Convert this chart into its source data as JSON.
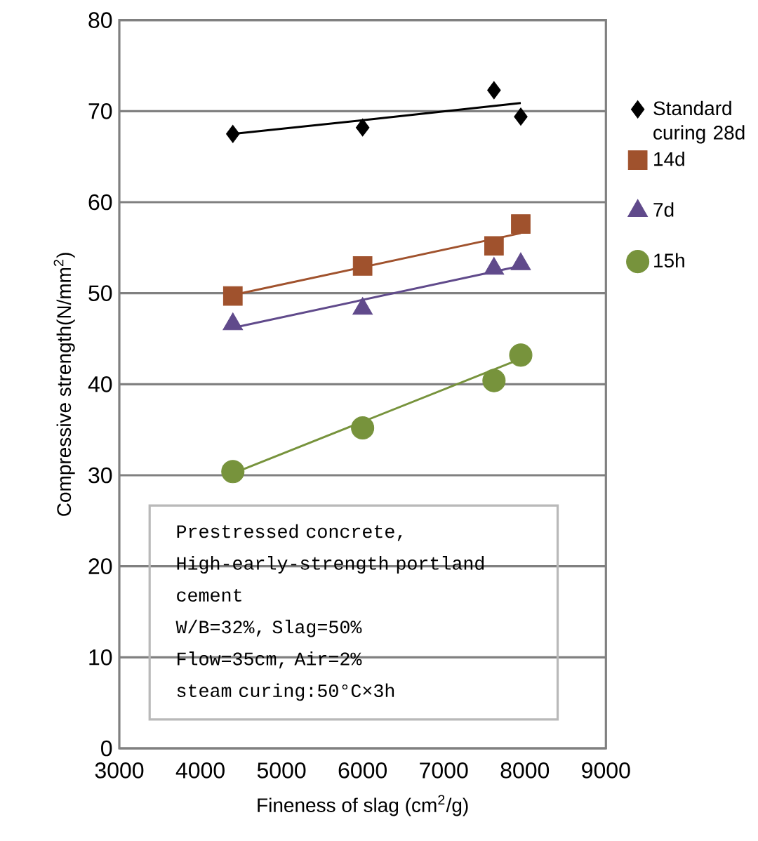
{
  "chart_data": {
    "type": "scatter",
    "xlabel": "Fineness of slag (cm$^{2}$/g)",
    "ylabel": "Compressive strength(N/mm$^{2}$)",
    "xlim": [
      3000,
      9000
    ],
    "xticks": [
      3000,
      4000,
      5000,
      6000,
      7000,
      8000,
      9000
    ],
    "ylim": [
      0,
      80
    ],
    "yticks": [
      0,
      10,
      20,
      30,
      40,
      50,
      60,
      70,
      80
    ],
    "grid": "y",
    "legend": "right",
    "series": [
      {
        "name": "Standard curing 28d",
        "marker": "diamond",
        "color": "#000000",
        "x": [
          4400,
          6000,
          7620,
          7950
        ],
        "values": [
          67.5,
          68.2,
          72.3,
          69.4
        ]
      },
      {
        "name": "14d",
        "marker": "square",
        "color": "#a0522d",
        "x": [
          4400,
          6000,
          7620,
          7950
        ],
        "values": [
          49.7,
          53.0,
          55.2,
          57.6
        ]
      },
      {
        "name": "7d",
        "marker": "triangle",
        "color": "#604a8b",
        "x": [
          4400,
          6000,
          7620,
          7950
        ],
        "values": [
          46.6,
          48.3,
          52.7,
          53.2
        ]
      },
      {
        "name": "15h",
        "marker": "circle",
        "color": "#77933c",
        "x": [
          4400,
          6000,
          7620,
          7950
        ],
        "values": [
          30.4,
          35.2,
          40.4,
          43.2
        ]
      },
      {
        "type": "line",
        "marker": "none",
        "line_style": "solid",
        "color": "#000000",
        "x": [
          4400,
          6000,
          7950
        ],
        "values": [
          67.5,
          69.0,
          70.9
        ]
      },
      {
        "type": "line",
        "marker": "none",
        "line_style": "solid",
        "color": "#a0522d",
        "x": [
          4400,
          7950
        ],
        "values": [
          49.8,
          56.6
        ]
      },
      {
        "type": "line",
        "marker": "none",
        "line_style": "solid",
        "color": "#604a8b",
        "x": [
          4400,
          7950
        ],
        "values": [
          46.2,
          53.0
        ]
      },
      {
        "type": "line",
        "marker": "none",
        "line_style": "solid",
        "color": "#77933c",
        "x": [
          4400,
          7950
        ],
        "values": [
          30.2,
          42.8
        ]
      }
    ],
    "annotations": [
      "Prestressed concrete,",
      "High-early-strength portland cement",
      "W/B=32%, Slag=50%",
      "Flow=35cm, Air=2%",
      "steam curing:50°C×3h"
    ]
  }
}
